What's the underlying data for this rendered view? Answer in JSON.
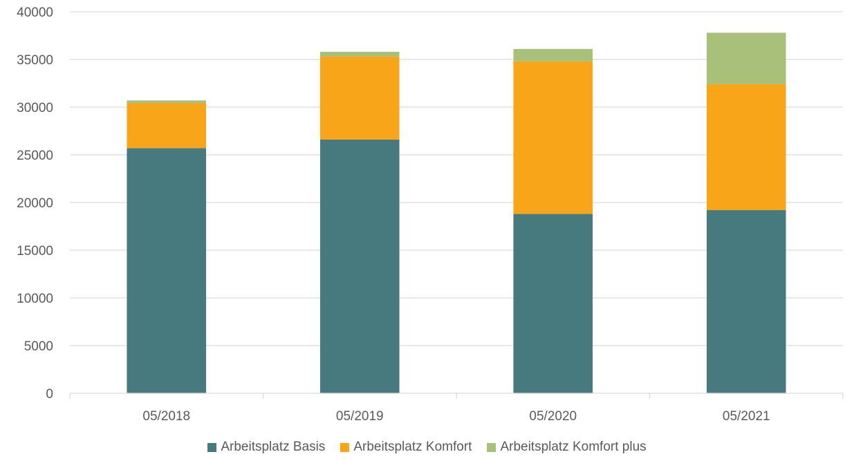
{
  "chart_data": {
    "type": "bar",
    "stacked": true,
    "categories": [
      "05/2018",
      "05/2019",
      "05/2020",
      "05/2021"
    ],
    "series": [
      {
        "name": "Arbeitsplatz Basis",
        "color": "#467A7E",
        "values": [
          25700,
          26600,
          18800,
          19200
        ]
      },
      {
        "name": "Arbeitsplatz Komfort",
        "color": "#F9A51A",
        "values": [
          4700,
          8700,
          16000,
          13200
        ]
      },
      {
        "name": "Arbeitsplatz Komfort plus",
        "color": "#A8C07A",
        "values": [
          300,
          500,
          1300,
          5400
        ]
      }
    ],
    "ylim": [
      0,
      40000
    ],
    "yticks": [
      "0",
      "5000",
      "10000",
      "15000",
      "20000",
      "25000",
      "30000",
      "35000",
      "40000"
    ],
    "grid": true,
    "legend_position": "bottom"
  }
}
